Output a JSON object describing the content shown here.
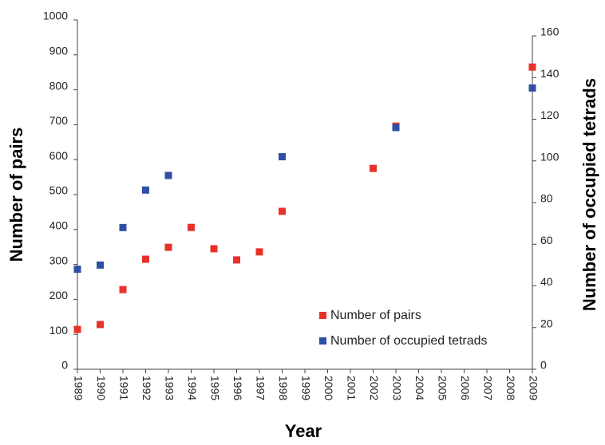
{
  "chart_data": {
    "type": "scatter",
    "x_label": "Year",
    "y_label": "Number of pairs",
    "y2_label": "Number of occupied tetrads",
    "categories": [
      "1989",
      "1990",
      "1991",
      "1992",
      "1993",
      "1994",
      "1995",
      "1996",
      "1997",
      "1998",
      "1999",
      "2000",
      "2001",
      "2002",
      "2003",
      "2004",
      "2005",
      "2006",
      "2007",
      "2008",
      "2009"
    ],
    "series": [
      {
        "name": "Number of pairs",
        "color": "#e8312a",
        "values": [
          114,
          128,
          228,
          315,
          349,
          406,
          345,
          313,
          336,
          452,
          null,
          null,
          null,
          575,
          696,
          null,
          null,
          null,
          null,
          null,
          865
        ]
      },
      {
        "name": "Number of occupied tetrads",
        "color": "#2e4fa3",
        "axis": "y2",
        "values": [
          48,
          50,
          68,
          86,
          93,
          null,
          null,
          null,
          null,
          102,
          null,
          null,
          null,
          null,
          116,
          null,
          null,
          null,
          null,
          null,
          135
        ]
      }
    ],
    "ylim": [
      0,
      1000
    ],
    "yticks": [
      0,
      100,
      200,
      300,
      400,
      500,
      600,
      700,
      800,
      900,
      1000
    ],
    "y2lim": [
      0,
      160
    ],
    "y2ticks": [
      0,
      20,
      40,
      60,
      80,
      100,
      120,
      140,
      160
    ],
    "grid": false,
    "legend": "lower right"
  }
}
